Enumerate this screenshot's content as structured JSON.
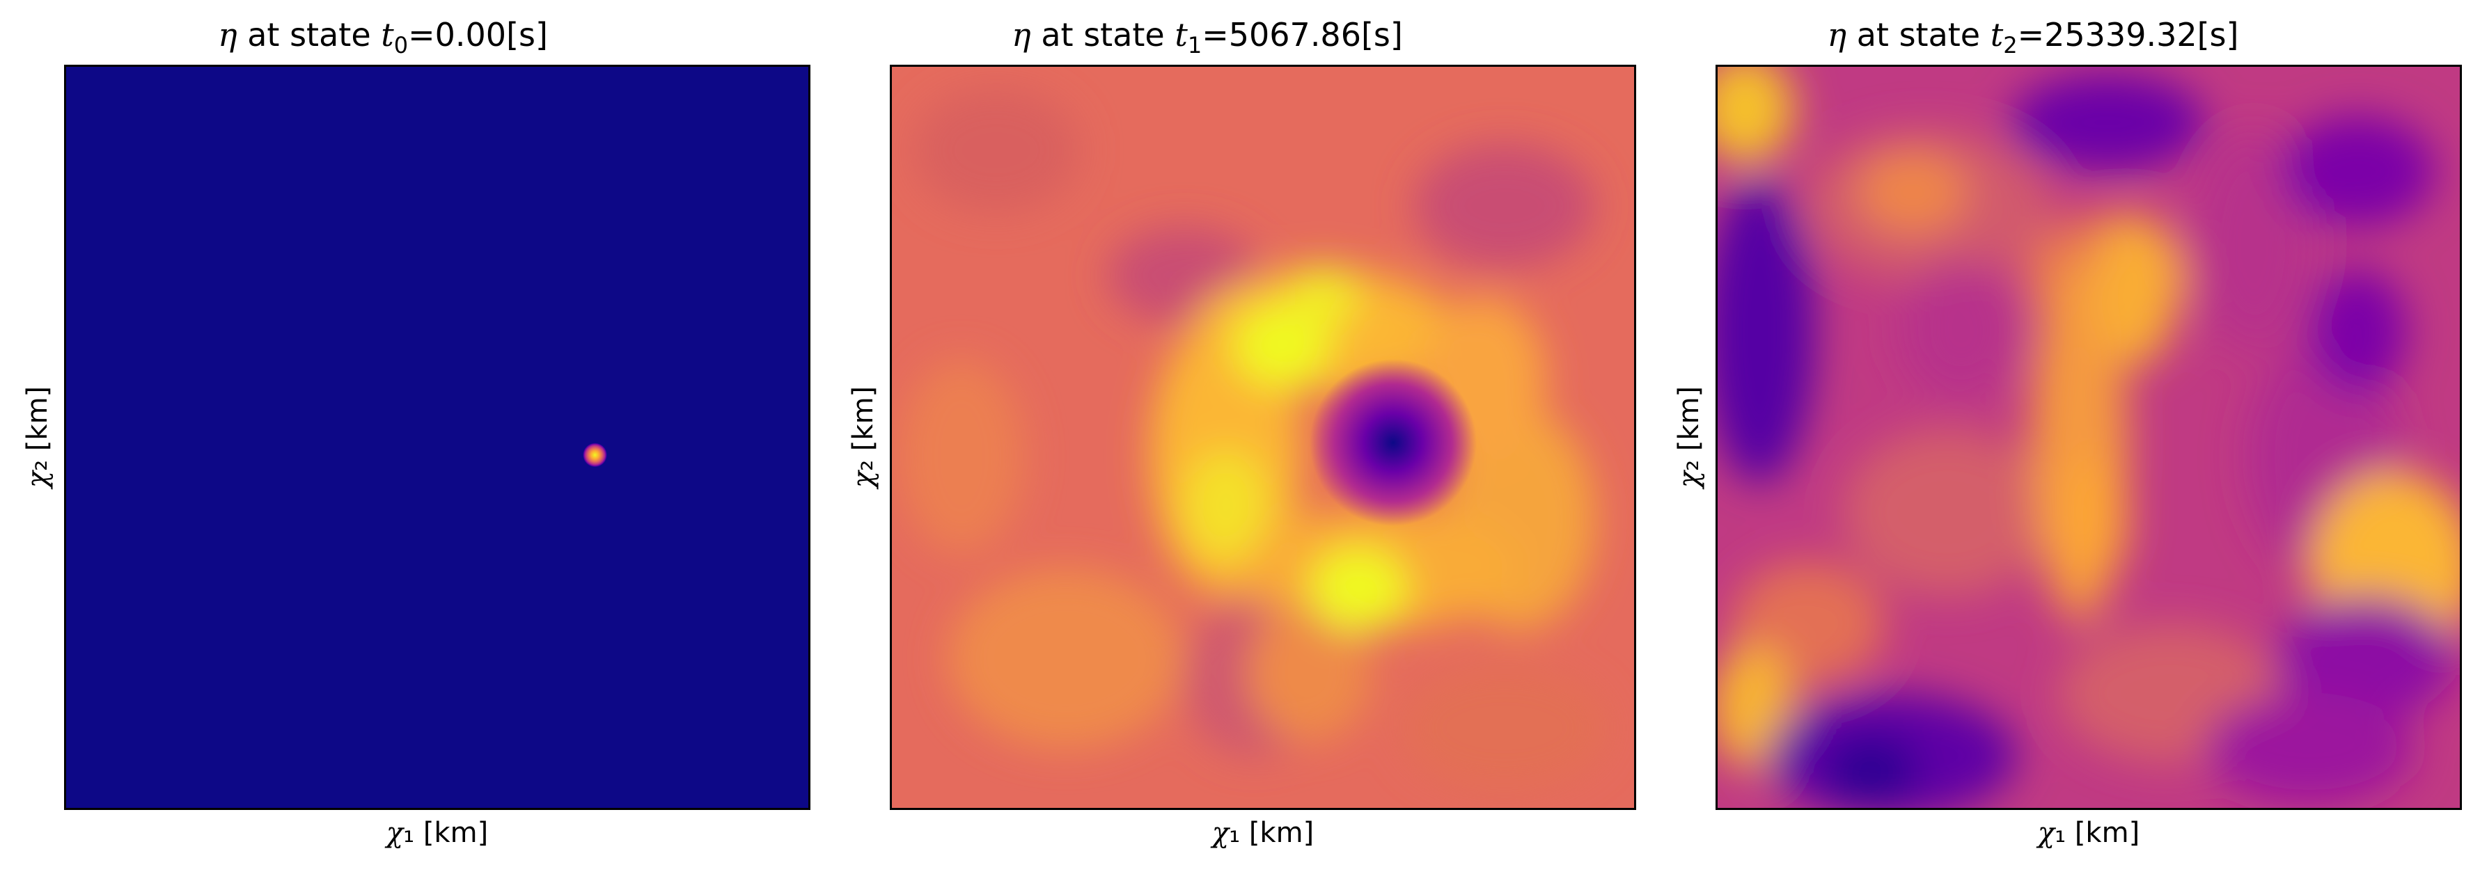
{
  "chart_data": [
    {
      "type": "heatmap",
      "title": {
        "symbol": "η",
        "prefix": " at state ",
        "var": "t",
        "sub": "0",
        "rest": "=0.00[s]"
      },
      "xlabel": {
        "symbol": "χ",
        "rest": "₁ [km]"
      },
      "ylabel": {
        "symbol": "χ",
        "rest": "₂ [km]"
      },
      "colormap": "plasma",
      "ticks": "none",
      "field": {
        "background": "#0d0887",
        "peak": {
          "x": 0.68,
          "y": 0.52,
          "value": 1.0
        }
      }
    },
    {
      "type": "heatmap",
      "title": {
        "symbol": "η",
        "prefix": " at state ",
        "var": "t",
        "sub": "1",
        "rest": "=5067.86[s]"
      },
      "xlabel": {
        "symbol": "χ",
        "rest": "₁ [km]"
      },
      "ylabel": {
        "symbol": "χ",
        "rest": "₂ [km]"
      },
      "colormap": "plasma",
      "ticks": "none",
      "field": {
        "background": "#e56b5d",
        "trough": {
          "x": 0.68,
          "y": 0.52,
          "value": 0.0
        },
        "ring_value": 0.95
      }
    },
    {
      "type": "heatmap",
      "title": {
        "symbol": "η",
        "prefix": " at state ",
        "var": "t",
        "sub": "2",
        "rest": "=25339.32[s]"
      },
      "xlabel": {
        "symbol": "χ",
        "rest": "₁ [km]"
      },
      "ylabel": {
        "symbol": "χ",
        "rest": "₂ [km]"
      },
      "colormap": "plasma",
      "ticks": "none",
      "field": {
        "background": "#c03a83",
        "pattern": "turbulent mix of low (purple) and high (yellow-orange) regions"
      }
    }
  ],
  "colors": {
    "plasma_dark": "#0d0887",
    "plasma_purple": "#6a00a8",
    "plasma_magenta": "#b12a90",
    "plasma_pink": "#e16462",
    "plasma_orange": "#fca636",
    "plasma_yellow": "#f0f921"
  }
}
